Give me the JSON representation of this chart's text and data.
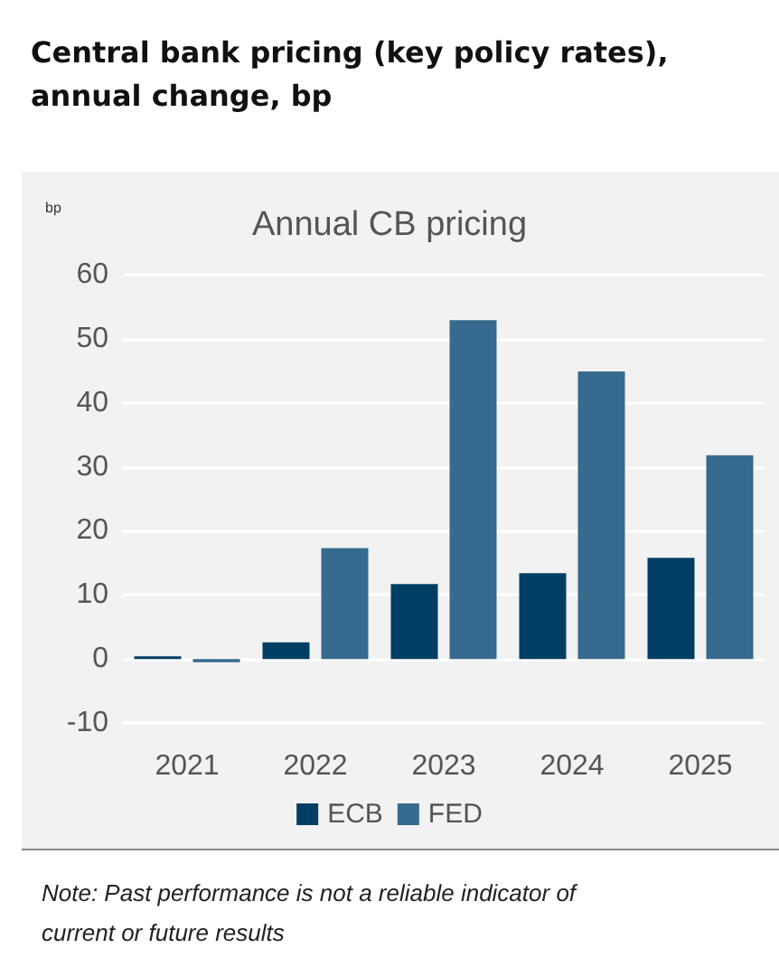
{
  "chart_data": {
    "type": "bar",
    "title": "Central bank pricing (key policy rates), annual change, bp",
    "subtitle": "Annual CB pricing",
    "ylabel": "bp",
    "categories": [
      "2021",
      "2022",
      "2023",
      "2024",
      "2025"
    ],
    "series": [
      {
        "name": "ECB",
        "color": "#003f63",
        "values": [
          0.4,
          2.6,
          11.7,
          13.4,
          15.8
        ]
      },
      {
        "name": "FED",
        "color": "#376a8f",
        "values": [
          -0.5,
          17.3,
          52.9,
          44.9,
          31.8
        ]
      }
    ],
    "ylim": [
      -10,
      60
    ],
    "yticks": [
      -10,
      0,
      10,
      20,
      30,
      40,
      50,
      60
    ],
    "grid": "y",
    "legend": "bottom",
    "annotations": [
      "Note: Past performance is not a reliable indicator of current or future results"
    ]
  }
}
